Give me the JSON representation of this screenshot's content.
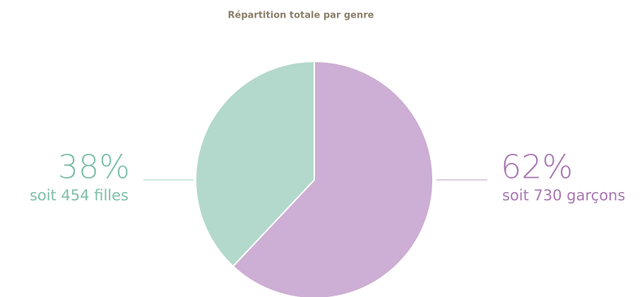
{
  "chart_data": {
    "type": "pie",
    "title": "Répartition totale par genre",
    "categories": [
      "garçons",
      "filles"
    ],
    "values": [
      62,
      38
    ],
    "value_labels": [
      "62%",
      "38%"
    ],
    "annotations": [
      "soit 730 garçons",
      "soit 454 filles"
    ],
    "colors": [
      "#cdaed4",
      "#b3d8cc"
    ],
    "label_colors": [
      "#a877b2",
      "#7dbfaa"
    ]
  }
}
